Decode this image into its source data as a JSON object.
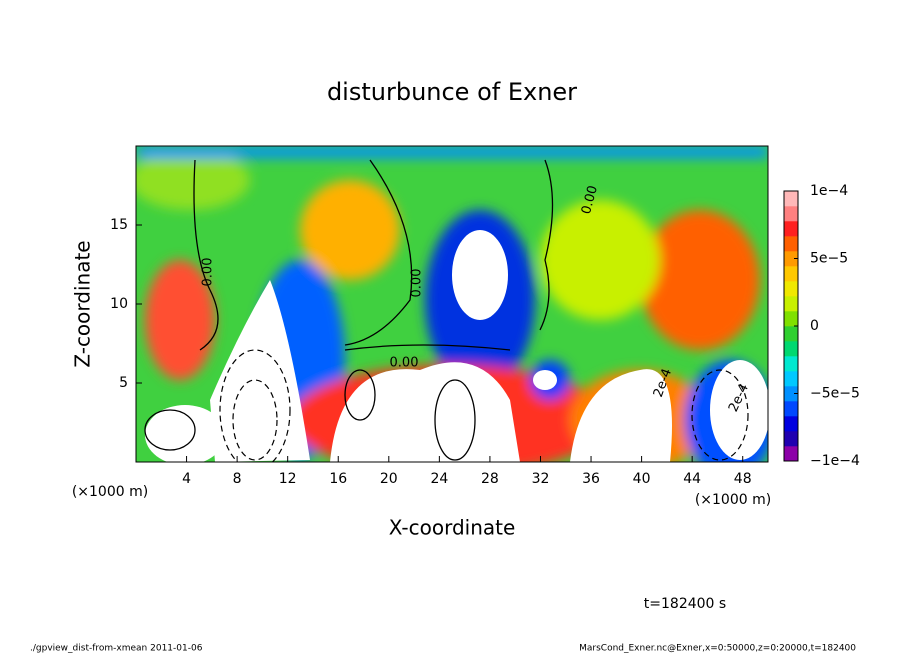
{
  "chart_data": {
    "type": "heatmap",
    "title": "disturbunce of Exner",
    "xlabel": "X-coordinate",
    "ylabel": "Z-coordinate",
    "x_unit": "(×1000 m)",
    "y_unit": "(×1000 m)",
    "xlim": [
      0,
      50
    ],
    "ylim": [
      0,
      20
    ],
    "xticks": [
      4,
      8,
      12,
      16,
      20,
      24,
      28,
      32,
      36,
      40,
      44,
      48
    ],
    "yticks": [
      5,
      10,
      15
    ],
    "clim": [
      -0.0001,
      0.0001
    ],
    "cticks": [
      {
        "value": 0.0001,
        "label": "1e−4"
      },
      {
        "value": 5e-05,
        "label": "5e−5"
      },
      0,
      {
        "value": -5e-05,
        "label": "−5e−5"
      },
      {
        "value": -0.0001,
        "label": "−1e−4"
      }
    ],
    "colors": [
      "#8c00a8",
      "#2000b0",
      "#0000e0",
      "#0048ff",
      "#0090ff",
      "#00c8ff",
      "#00e8d0",
      "#00d870",
      "#30d030",
      "#80e000",
      "#c8f000",
      "#f0e800",
      "#ffc800",
      "#ff9a00",
      "#ff6000",
      "#ff2020",
      "#ff8080",
      "#ffb8b8"
    ],
    "contour_labels": [
      "0.00",
      "0.00",
      "0.00",
      "0.00",
      "2e-4",
      "2e-4"
    ],
    "time_label": "t=182400 s",
    "footer_left": "./gpview_dist-from-xmean  2011-01-06",
    "footer_right": "MarsCond_Exner.nc@Exner,x=0:50000,z=0:20000,t=182400"
  }
}
